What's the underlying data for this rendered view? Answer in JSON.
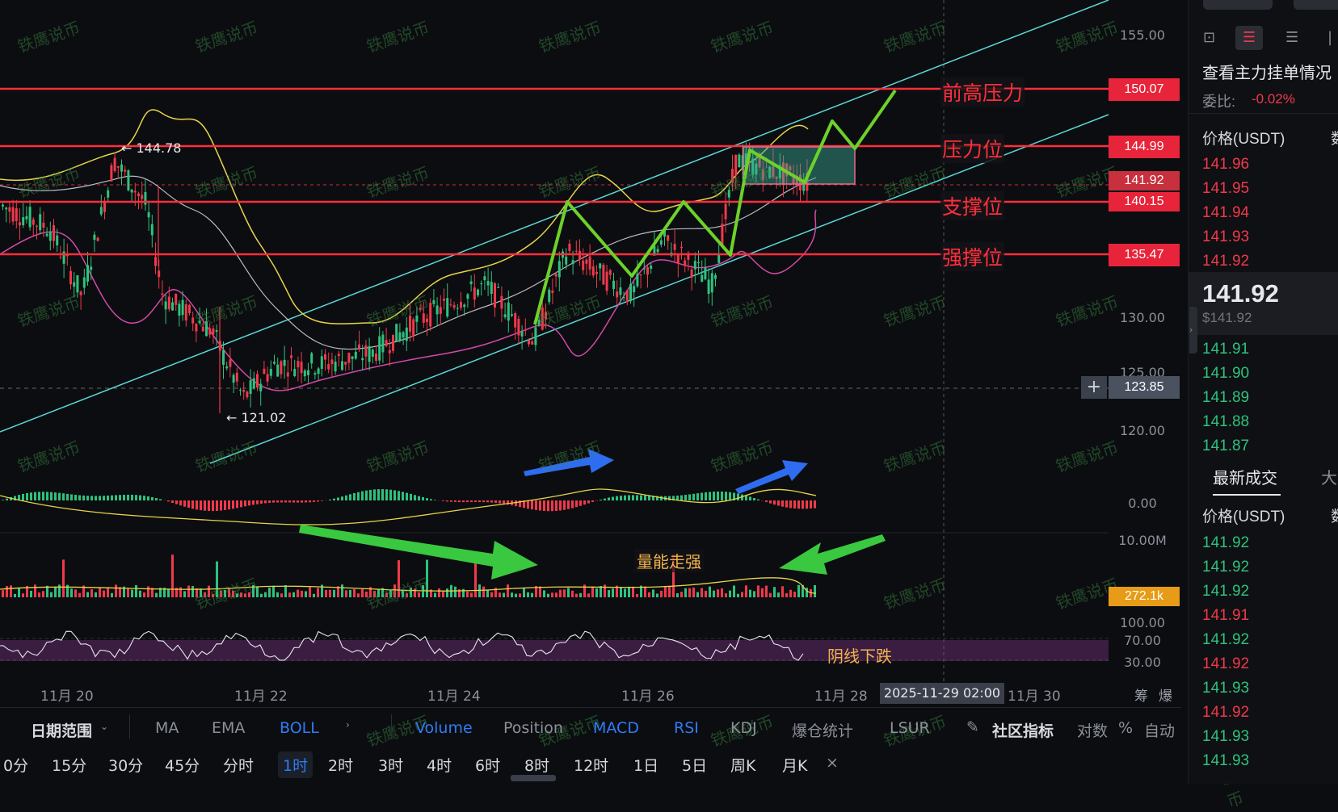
{
  "watermark": "铁鹰说币",
  "price_axis": {
    "ticks": [
      "155.00",
      "130.00",
      "125.00",
      "120.00",
      "0.00",
      "10.00M",
      "100.00",
      "70.00",
      "30.00"
    ],
    "tags": {
      "prev_high": "150.07",
      "resistance": "144.99",
      "last": "141.92",
      "support": "140.15",
      "strong_support": "135.47",
      "cursor": "123.85",
      "volume": "272.1k"
    }
  },
  "levels": {
    "prev_high": "前高压力",
    "resistance": "压力位",
    "support": "支撑位",
    "strong_support": "强撑位"
  },
  "annotations": {
    "high": "← 144.78",
    "low": "← 121.02",
    "volume_note": "量能走强",
    "rsi_note": "阴线下跌"
  },
  "date_axis": [
    "11月 20",
    "11月 22",
    "11月 24",
    "11月 26",
    "11月 28",
    "11月 30"
  ],
  "time_cursor": "2025-11-29 02:00",
  "axis_icons": [
    "筹",
    "爆"
  ],
  "toolbar": {
    "date_range": "日期范围",
    "indicators": [
      "MA",
      "EMA",
      "BOLL",
      "Volume",
      "Position",
      "MACD",
      "RSI",
      "KDJ",
      "爆仓统计",
      "LSUR"
    ],
    "community": "社区指标",
    "log": "对数",
    "percent": "%",
    "auto": "自动"
  },
  "timeframes": [
    "0分",
    "15分",
    "30分",
    "45分",
    "分时",
    "1时",
    "2时",
    "3时",
    "4时",
    "6时",
    "8时",
    "12时",
    "1日",
    "5日",
    "周K",
    "月K"
  ],
  "active_timeframe": "1时",
  "close_icon": "×",
  "order_book": {
    "title": "查看主力挂单情况",
    "ratio_label": "委比:",
    "ratio_value": "-0.02%",
    "price_header": "价格(USDT)",
    "qty_header": "数",
    "asks": [
      "141.96",
      "141.95",
      "141.94",
      "141.93",
      "141.92"
    ],
    "last_price": "141.92",
    "last_price_usd": "$141.92",
    "bids": [
      "141.91",
      "141.90",
      "141.89",
      "141.88",
      "141.87"
    ]
  },
  "trades": {
    "tab_latest": "最新成交",
    "tab_big": "大",
    "price_header": "价格(USDT)",
    "qty_header": "数",
    "rows": [
      {
        "p": "141.92",
        "side": "buy"
      },
      {
        "p": "141.92",
        "side": "buy"
      },
      {
        "p": "141.92",
        "side": "buy"
      },
      {
        "p": "141.91",
        "side": "sell"
      },
      {
        "p": "141.92",
        "side": "buy"
      },
      {
        "p": "141.92",
        "side": "sell"
      },
      {
        "p": "141.93",
        "side": "buy"
      },
      {
        "p": "141.92",
        "side": "sell"
      },
      {
        "p": "141.93",
        "side": "buy"
      },
      {
        "p": "141.93",
        "side": "buy"
      }
    ]
  },
  "colors": {
    "level_red": "#ff2e3c",
    "up": "#2ec27e",
    "down": "#f0394b",
    "channel": "#5ad6d6",
    "boll_upper": "#e8d44a",
    "boll_mid": "#b9bcc4",
    "boll_lower": "#d04aa8",
    "pattern": "#6cd22a",
    "arrow_blue": "#2f6df0",
    "arrow_green": "#39c83f"
  }
}
